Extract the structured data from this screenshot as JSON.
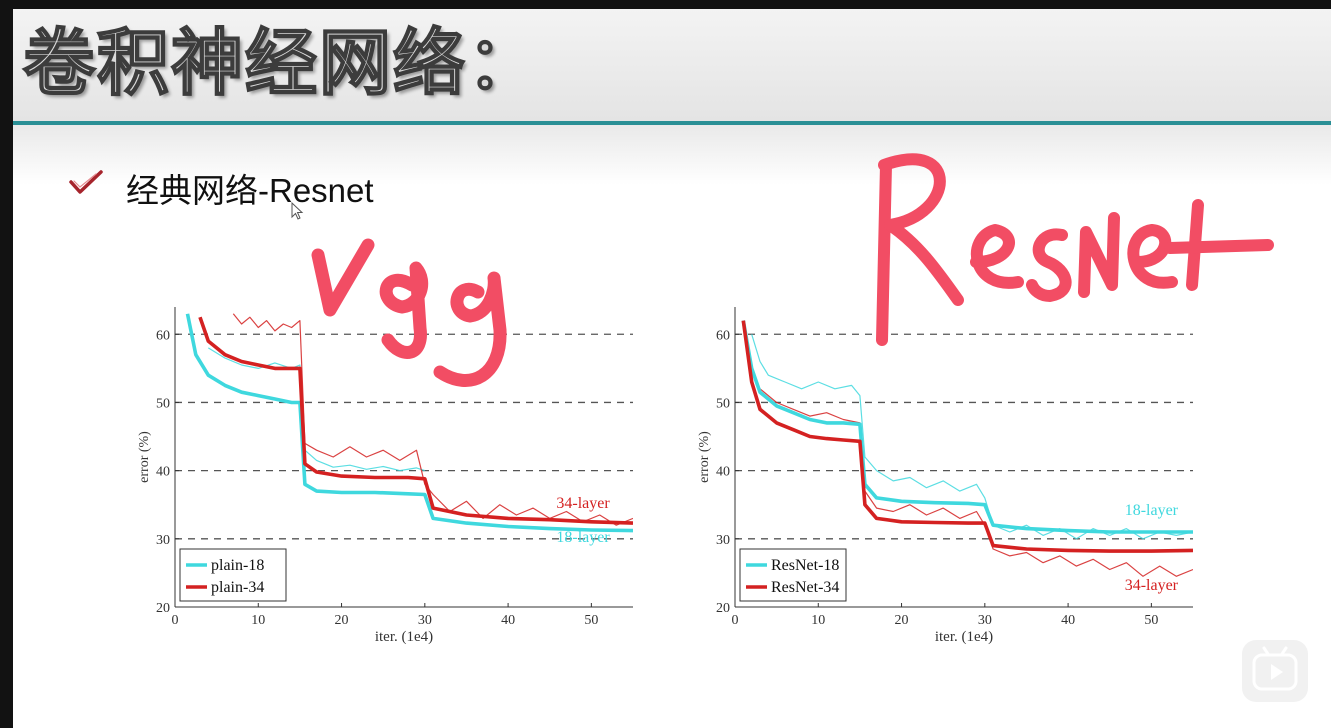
{
  "slide": {
    "title": "卷积神经网络：",
    "bullet_text": "经典网络-Resnet",
    "handwriting": {
      "left": "vgg",
      "right": "Resnet",
      "color": "#f24d64"
    }
  },
  "icons": {
    "bullet": "checkmark-icon",
    "cursor": "mouse-cursor-icon",
    "play": "video-play-icon"
  },
  "colors": {
    "cyan": "#3fd8de",
    "red": "#d42121",
    "accent_rule": "#2a8f95"
  },
  "chart_data": [
    {
      "type": "line",
      "xlabel": "iter. (1e4)",
      "ylabel": "error (%)",
      "xlim": [
        0,
        55
      ],
      "ylim": [
        20,
        64
      ],
      "xticks": [
        0,
        10,
        20,
        30,
        40,
        50
      ],
      "yticks": [
        20,
        30,
        40,
        50,
        60
      ],
      "grid": "dashed horizontal at 30, 40, 50, 60",
      "legend": {
        "placement": "bottom-left",
        "entries": [
          "plain-18",
          "plain-34"
        ]
      },
      "annotations": [
        {
          "text": "34-layer",
          "x": 49,
          "y": 34.5,
          "color": "red"
        },
        {
          "text": "18-layer",
          "x": 49,
          "y": 29.5,
          "color": "cyan"
        }
      ],
      "series": [
        {
          "name": "plain-18",
          "color": "cyan",
          "bold": true,
          "x": [
            1.5,
            2.5,
            4,
            6,
            8,
            10,
            12,
            14,
            15,
            15.6,
            17,
            20,
            24,
            28,
            30,
            31,
            35,
            40,
            45,
            50,
            55
          ],
          "y": [
            63,
            57,
            54,
            52.5,
            51.5,
            51,
            50.5,
            50,
            50,
            38,
            37,
            36.8,
            36.8,
            36.6,
            36.5,
            33,
            32.3,
            31.8,
            31.5,
            31.3,
            31.2
          ]
        },
        {
          "name": "plain-34",
          "color": "red",
          "bold": true,
          "x": [
            3,
            4,
            6,
            8,
            10,
            12,
            14,
            15,
            15.6,
            17,
            20,
            24,
            28,
            30,
            31,
            35,
            40,
            45,
            50,
            55
          ],
          "y": [
            62.5,
            59,
            57,
            56,
            55.5,
            55,
            55,
            55,
            41,
            39.8,
            39.2,
            39,
            39,
            38.8,
            34.5,
            33.5,
            33,
            32.8,
            32.5,
            32.3
          ]
        },
        {
          "name": "plain-18 train",
          "color": "cyan",
          "bold": false,
          "x": [
            4,
            6,
            8,
            10,
            12,
            14,
            15,
            15.6,
            17,
            19,
            21,
            23,
            25,
            27,
            29,
            30
          ],
          "y": [
            58,
            56.5,
            55.5,
            55,
            55.8,
            55,
            55.5,
            43,
            41.5,
            40.5,
            40.8,
            40.2,
            40.6,
            40,
            40.4,
            40
          ]
        },
        {
          "name": "plain-34 train",
          "color": "red",
          "bold": false,
          "x": [
            7,
            8,
            9,
            10,
            11,
            12,
            13,
            14,
            15,
            15.6,
            17,
            19,
            21,
            23,
            25,
            27,
            29,
            30,
            31,
            33,
            35,
            37,
            39,
            41,
            43,
            45,
            47,
            49,
            51,
            53,
            55
          ],
          "y": [
            63,
            61.5,
            62.5,
            61,
            62,
            60.5,
            61.5,
            61,
            62,
            44,
            43,
            42,
            43.5,
            42,
            43,
            41.5,
            43,
            38,
            36.5,
            34,
            35.5,
            33,
            35,
            33.5,
            34.5,
            33,
            34,
            32.5,
            33.5,
            32,
            33
          ]
        }
      ]
    },
    {
      "type": "line",
      "xlabel": "iter. (1e4)",
      "ylabel": "error (%)",
      "xlim": [
        0,
        55
      ],
      "ylim": [
        20,
        64
      ],
      "xticks": [
        0,
        10,
        20,
        30,
        40,
        50
      ],
      "yticks": [
        20,
        30,
        40,
        50,
        60
      ],
      "grid": "dashed horizontal at 30, 40, 50, 60",
      "legend": {
        "placement": "bottom-left",
        "entries": [
          "ResNet-18",
          "ResNet-34"
        ]
      },
      "annotations": [
        {
          "text": "18-layer",
          "x": 50,
          "y": 33.5,
          "color": "cyan"
        },
        {
          "text": "34-layer",
          "x": 50,
          "y": 22.5,
          "color": "red"
        }
      ],
      "series": [
        {
          "name": "ResNet-18",
          "color": "cyan",
          "bold": true,
          "x": [
            1,
            2,
            3,
            5,
            7,
            9,
            11,
            13,
            15,
            15.6,
            17,
            20,
            24,
            28,
            30,
            31,
            35,
            40,
            45,
            50,
            55
          ],
          "y": [
            62,
            55,
            51.5,
            49.5,
            48.5,
            47.5,
            47,
            47,
            46.8,
            38,
            36,
            35.5,
            35.3,
            35.2,
            35,
            32,
            31.5,
            31.2,
            31,
            31,
            31
          ]
        },
        {
          "name": "ResNet-34",
          "color": "red",
          "bold": true,
          "x": [
            1,
            2,
            3,
            5,
            7,
            9,
            11,
            13,
            15,
            15.6,
            17,
            20,
            24,
            28,
            30,
            31,
            35,
            40,
            45,
            50,
            55
          ],
          "y": [
            62,
            53,
            49,
            47,
            46,
            45,
            44.7,
            44.5,
            44.3,
            35,
            33,
            32.5,
            32.4,
            32.3,
            32.3,
            29,
            28.5,
            28.3,
            28.2,
            28.2,
            28.3
          ]
        },
        {
          "name": "ResNet-18 train",
          "color": "cyan",
          "bold": false,
          "x": [
            2,
            3,
            4,
            6,
            8,
            10,
            12,
            14,
            15,
            15.6,
            17,
            19,
            21,
            23,
            25,
            27,
            29,
            30,
            31,
            33,
            35,
            37,
            39,
            41,
            43,
            45,
            47,
            49,
            51,
            53,
            55
          ],
          "y": [
            60,
            56,
            54,
            53,
            52,
            53,
            52,
            52.5,
            51,
            42,
            40,
            38.5,
            39,
            37.5,
            38.5,
            37,
            38,
            36,
            32,
            31,
            32,
            30.5,
            31.5,
            30,
            31.5,
            30.5,
            31.5,
            30,
            31,
            30.5,
            31
          ]
        },
        {
          "name": "ResNet-34 train",
          "color": "red",
          "bold": false,
          "x": [
            3,
            5,
            7,
            9,
            11,
            13,
            15,
            15.6,
            17,
            19,
            21,
            23,
            25,
            27,
            29,
            30,
            31,
            33,
            35,
            37,
            39,
            41,
            43,
            45,
            47,
            49,
            51,
            53,
            55
          ],
          "y": [
            52,
            50,
            49,
            48,
            48.5,
            47.5,
            47,
            37,
            34.5,
            34,
            35,
            33.5,
            34.5,
            33,
            34,
            32,
            28.5,
            27.5,
            28,
            26.5,
            27.5,
            26,
            27,
            25.5,
            26.5,
            24.5,
            26,
            24.5,
            25.5
          ]
        }
      ]
    }
  ]
}
